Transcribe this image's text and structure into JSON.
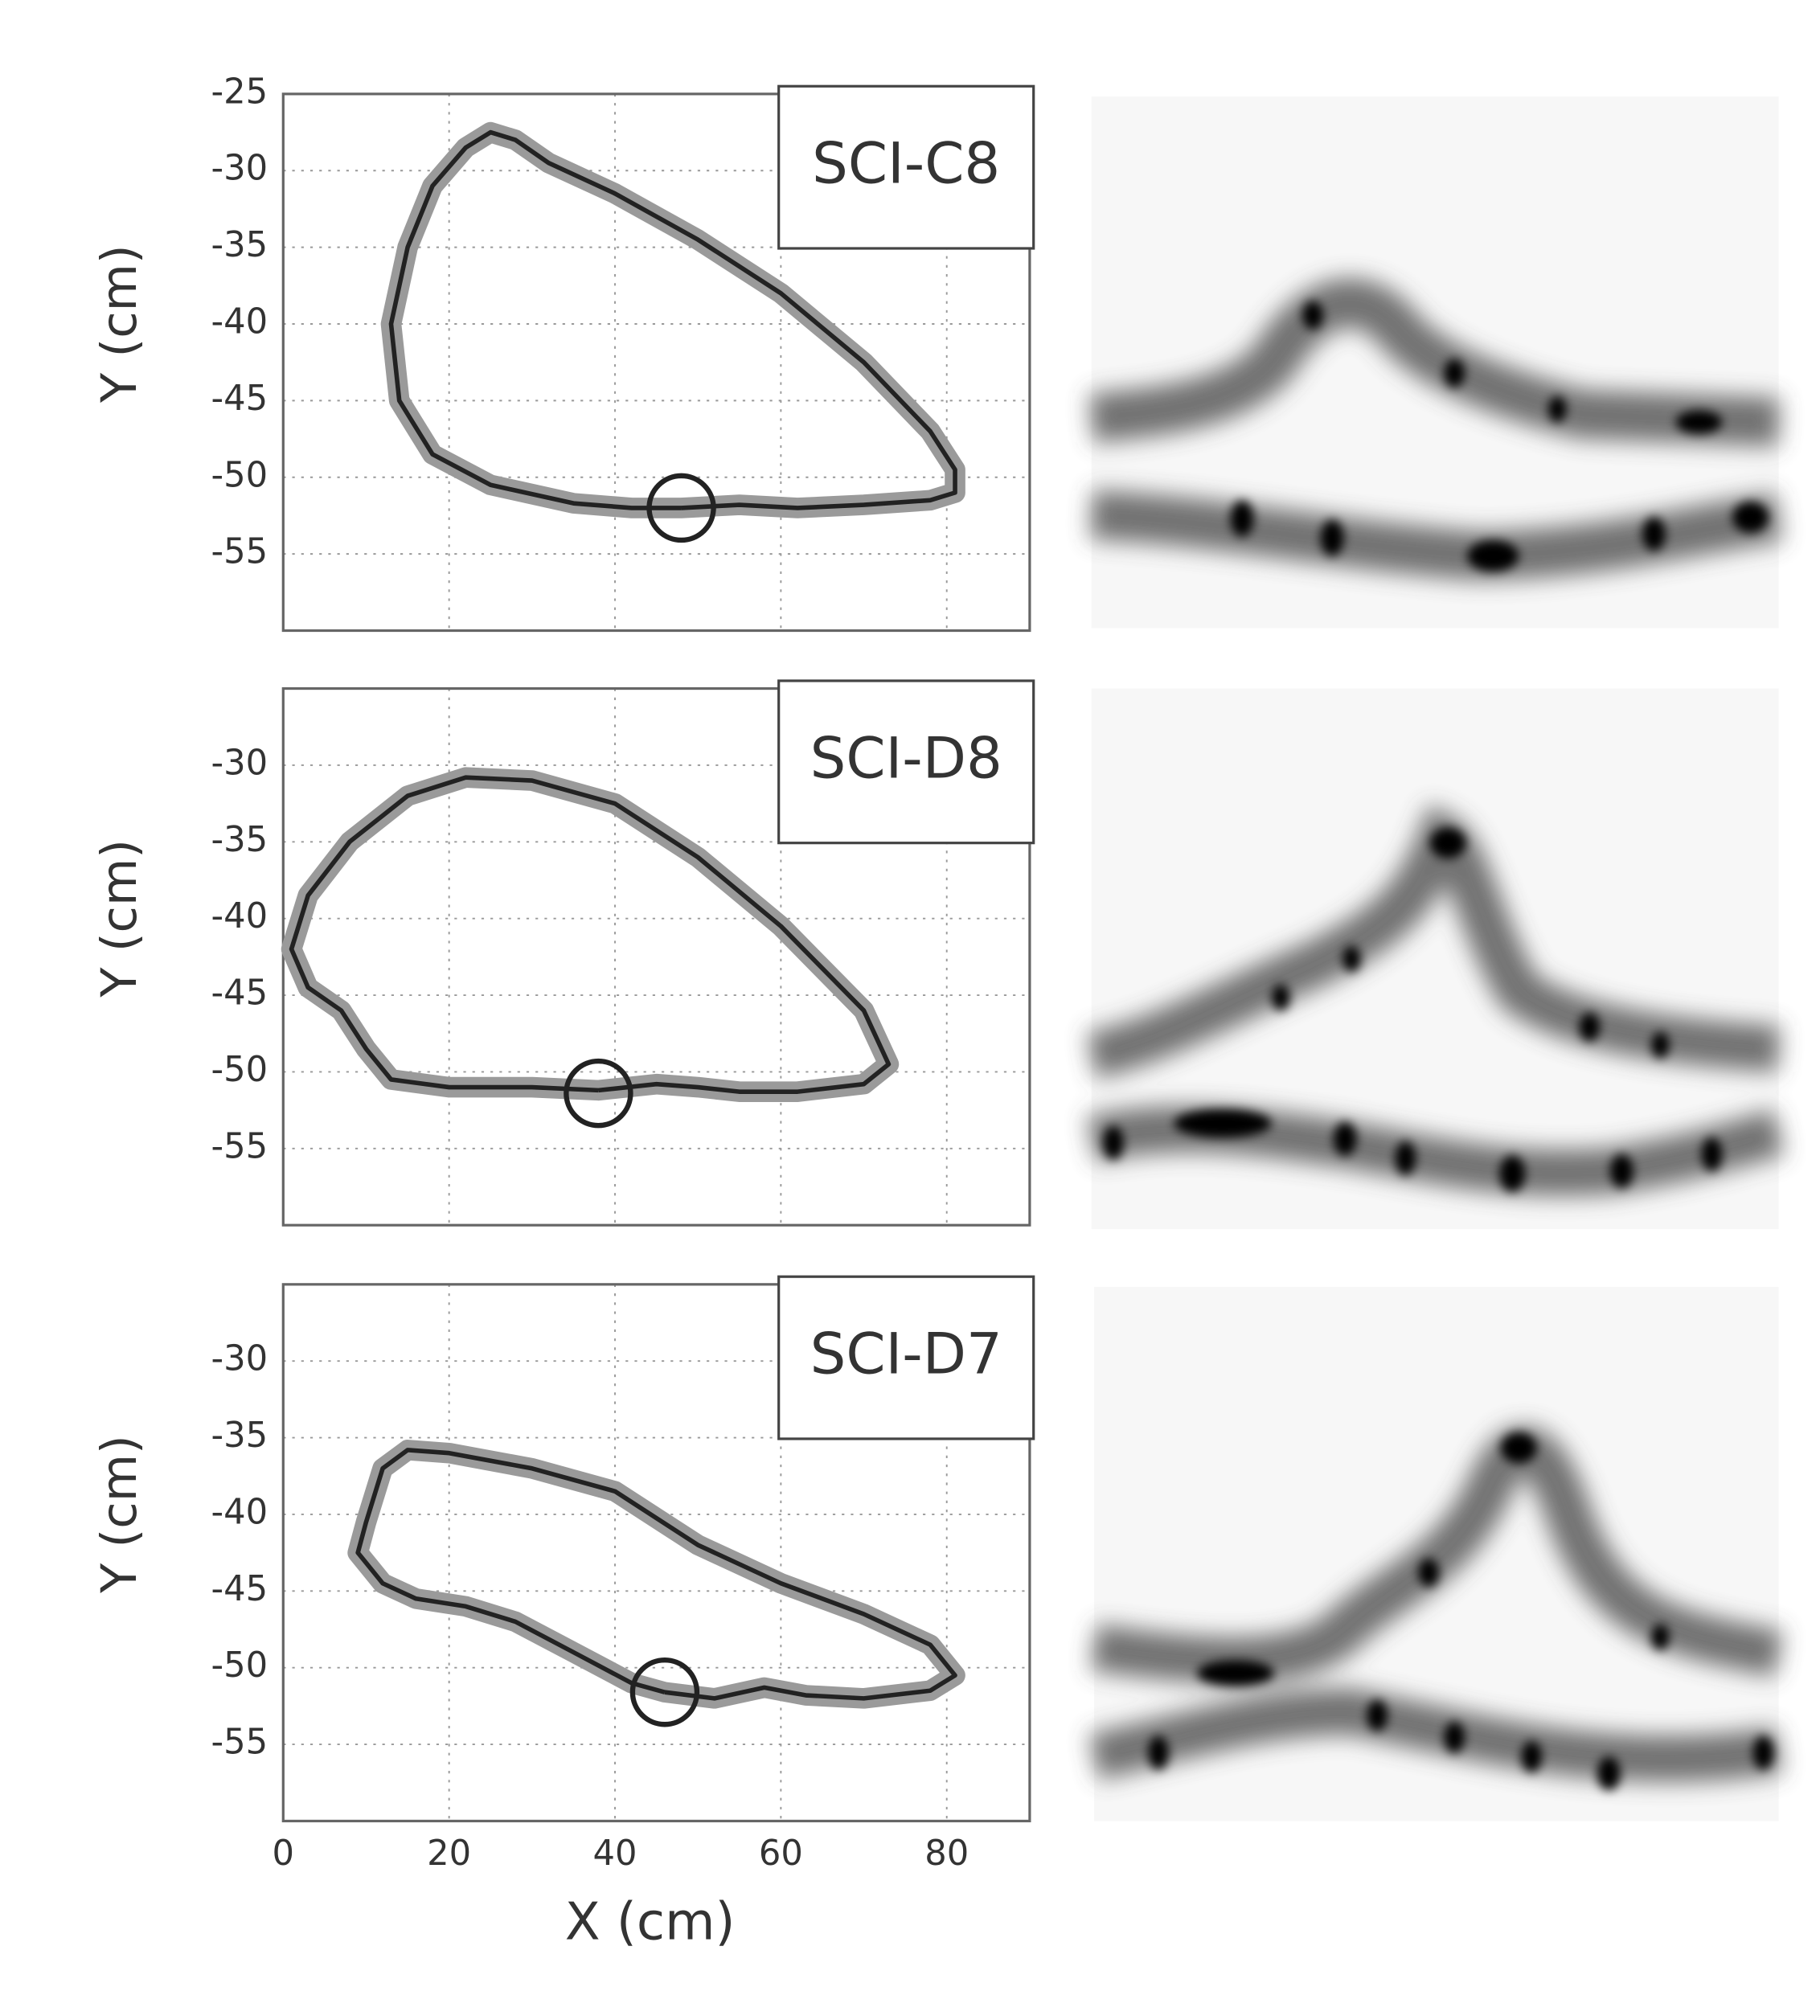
{
  "chart_data": [
    {
      "type": "line",
      "annotation": "SCI-C8",
      "ylabel": "Y (cm)",
      "xlim": [
        0,
        90
      ],
      "ylim": [
        -60,
        -25
      ],
      "xticks": [
        0,
        20,
        40,
        60,
        80
      ],
      "yticks": [
        -25,
        -30,
        -35,
        -40,
        -45,
        -50,
        -55
      ],
      "show_xtick_labels": false,
      "grid": true,
      "band_color": "#9a9a9a",
      "series": [
        {
          "color": "#222222",
          "x": [
            48,
            55,
            62,
            70,
            78,
            81,
            81,
            78,
            70,
            60,
            50,
            40,
            32,
            28,
            25,
            22,
            18,
            15,
            13,
            14,
            18,
            25,
            35,
            42,
            48
          ],
          "values": [
            -52,
            -51.8,
            -52,
            -51.8,
            -51.5,
            -51,
            -49.5,
            -47,
            -42.5,
            -38,
            -34.5,
            -31.5,
            -29.5,
            -28,
            -27.5,
            -28.5,
            -31,
            -35,
            -40,
            -45,
            -48.5,
            -50.5,
            -51.7,
            -52,
            -52
          ]
        }
      ],
      "marker": {
        "x": 48,
        "y": -52
      }
    },
    {
      "type": "line",
      "annotation": "SCI-D8",
      "ylabel": "Y (cm)",
      "xlim": [
        0,
        90
      ],
      "ylim": [
        -60,
        -25
      ],
      "xticks": [
        0,
        20,
        40,
        60,
        80
      ],
      "yticks": [
        -30,
        -35,
        -40,
        -45,
        -50,
        -55
      ],
      "show_xtick_labels": false,
      "grid": true,
      "band_color": "#9a9a9a",
      "series": [
        {
          "color": "#222222",
          "x": [
            38,
            45,
            50,
            55,
            62,
            70,
            73,
            70,
            60,
            50,
            40,
            30,
            22,
            15,
            8,
            3,
            1,
            3,
            7,
            10,
            13,
            20,
            30,
            38
          ],
          "values": [
            -51.2,
            -50.8,
            -51,
            -51.3,
            -51.3,
            -50.8,
            -49.5,
            -46,
            -40.5,
            -36,
            -32.5,
            -31,
            -30.8,
            -32,
            -35,
            -38.5,
            -42,
            -44.5,
            -46,
            -48.5,
            -50.5,
            -51,
            -51,
            -51.2
          ]
        }
      ],
      "marker": {
        "x": 38,
        "y": -51.4
      }
    },
    {
      "type": "line",
      "annotation": "SCI-D7",
      "ylabel": "Y (cm)",
      "xlabel": "X (cm)",
      "xlim": [
        0,
        90
      ],
      "ylim": [
        -60,
        -25
      ],
      "xticks": [
        0,
        20,
        40,
        60,
        80
      ],
      "yticks": [
        -30,
        -35,
        -40,
        -45,
        -50,
        -55
      ],
      "show_xtick_labels": true,
      "grid": true,
      "band_color": "#9a9a9a",
      "series": [
        {
          "color": "#222222",
          "x": [
            46,
            52,
            58,
            63,
            70,
            78,
            81,
            78,
            70,
            60,
            50,
            40,
            30,
            20,
            15,
            12,
            10,
            9,
            12,
            16,
            22,
            28,
            35,
            42,
            46
          ],
          "values": [
            -51.6,
            -52,
            -51.3,
            -51.8,
            -52,
            -51.5,
            -50.5,
            -48.5,
            -46.5,
            -44.5,
            -42,
            -38.5,
            -37,
            -36,
            -35.8,
            -37,
            -40.5,
            -42.5,
            -44.5,
            -45.5,
            -46,
            -47,
            -49,
            -51,
            -51.6
          ]
        }
      ],
      "marker": {
        "x": 46,
        "y": -51.6
      }
    }
  ]
}
